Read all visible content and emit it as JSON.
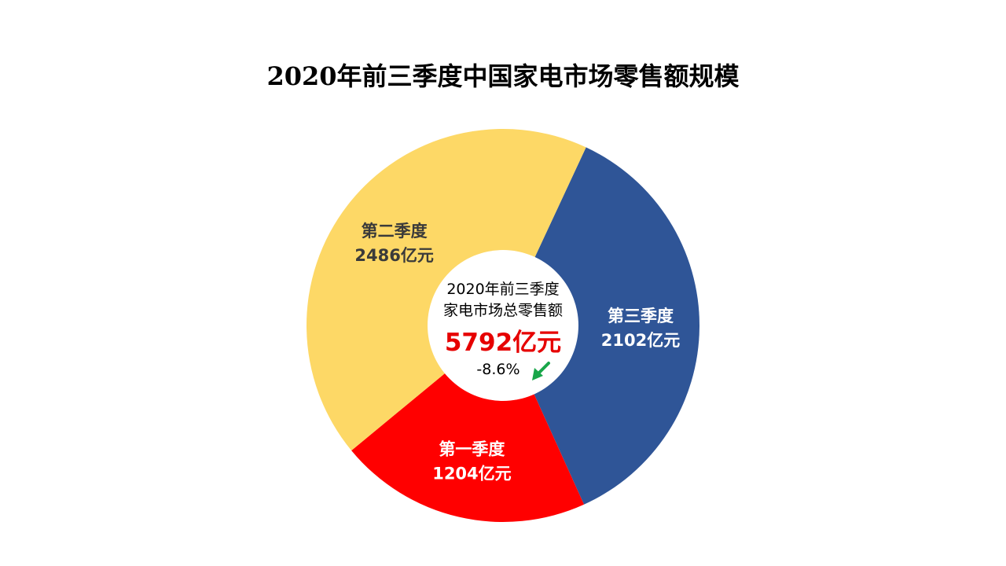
{
  "chart_data": {
    "type": "pie",
    "title": "2020年前三季度中国家电市场零售额规模",
    "unit": "亿元",
    "slices": [
      {
        "name": "第一季度",
        "value": 1204,
        "label": "1204亿元",
        "color": "#ff0000",
        "label_color": "#ffffff"
      },
      {
        "name": "第二季度",
        "value": 2486,
        "label": "2486亿元",
        "color": "#fdd866",
        "label_color": "#3a3a3a"
      },
      {
        "name": "第三季度",
        "value": 2102,
        "label": "2102亿元",
        "color": "#2f5597",
        "label_color": "#ffffff"
      }
    ],
    "center": {
      "line1": "2020年前三季度",
      "line2": "家电市场总零售额",
      "total_label": "5792亿元",
      "total_color": "#e60000",
      "change_label": "-8.6%",
      "change_icon": "green-down-arrow-icon",
      "change_icon_color": "#19a64a"
    }
  }
}
